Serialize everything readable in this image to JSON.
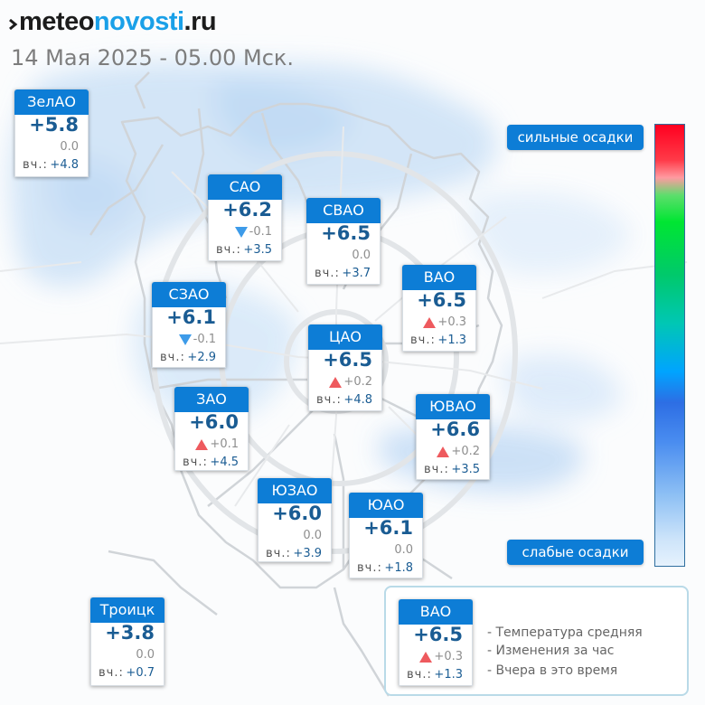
{
  "brand": {
    "part1": "meteo",
    "part2": "novosti",
    "part3": ".ru"
  },
  "datetime": "14 Мая 2025 - 05.00 Мск.",
  "yesterday_label": "вч.:",
  "districts": [
    {
      "id": "zelao",
      "name": "ЗелАО",
      "temp": "+5.8",
      "change": "0.0",
      "trend": "none",
      "yesterday": "+4.8"
    },
    {
      "id": "sao",
      "name": "САО",
      "temp": "+6.2",
      "change": "-0.1",
      "trend": "down",
      "yesterday": "+3.5"
    },
    {
      "id": "svao",
      "name": "СВАО",
      "temp": "+6.5",
      "change": "0.0",
      "trend": "none",
      "yesterday": "+3.7"
    },
    {
      "id": "vao",
      "name": "ВАО",
      "temp": "+6.5",
      "change": "+0.3",
      "trend": "up",
      "yesterday": "+1.3"
    },
    {
      "id": "szao",
      "name": "СЗАО",
      "temp": "+6.1",
      "change": "-0.1",
      "trend": "down",
      "yesterday": "+2.9"
    },
    {
      "id": "cao",
      "name": "ЦАО",
      "temp": "+6.5",
      "change": "+0.2",
      "trend": "up",
      "yesterday": "+4.8"
    },
    {
      "id": "zao",
      "name": "ЗАО",
      "temp": "+6.0",
      "change": "+0.1",
      "trend": "up",
      "yesterday": "+4.5"
    },
    {
      "id": "yuvao",
      "name": "ЮВАО",
      "temp": "+6.6",
      "change": "+0.2",
      "trend": "up",
      "yesterday": "+3.5"
    },
    {
      "id": "yuzao",
      "name": "ЮЗАО",
      "temp": "+6.0",
      "change": "0.0",
      "trend": "none",
      "yesterday": "+3.9"
    },
    {
      "id": "yuao",
      "name": "ЮАО",
      "temp": "+6.1",
      "change": "0.0",
      "trend": "none",
      "yesterday": "+1.8"
    },
    {
      "id": "troitsk",
      "name": "Троицк",
      "temp": "+3.8",
      "change": "0.0",
      "trend": "none",
      "yesterday": "+0.7"
    }
  ],
  "precip_scale": {
    "strong_label": "сильные осадки",
    "weak_label": "слабые осадки"
  },
  "legend": {
    "sample": {
      "name": "ВАО",
      "temp": "+6.5",
      "change": "+0.3",
      "trend": "up",
      "yesterday": "+1.3"
    },
    "lines": [
      "- Температура средняя",
      "- Изменения за час",
      "- Вчера в это время"
    ]
  },
  "colors": {
    "accent": "#0d7dd6",
    "temp_text": "#1a5c93",
    "up": "#ee5a5e",
    "down": "#3d9be9",
    "precip": "#cfe3f7"
  }
}
